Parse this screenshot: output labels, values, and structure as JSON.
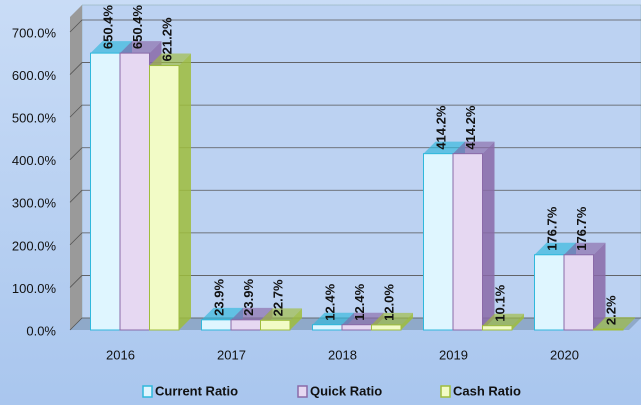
{
  "chart_data": {
    "type": "bar3d",
    "categories": [
      "2016",
      "2017",
      "2018",
      "2019",
      "2020"
    ],
    "series": [
      {
        "name": "Current Ratio",
        "color": "#dff6ff",
        "edge": "#2fb8dc",
        "values": [
          650.4,
          23.9,
          12.4,
          414.2,
          176.7
        ],
        "value_labels": [
          "650.4%",
          "23.9%",
          "12.4%",
          "414.2%",
          "176.7%"
        ]
      },
      {
        "name": "Quick Ratio",
        "color": "#e6d8f2",
        "edge": "#8a6aa8",
        "values": [
          650.4,
          23.9,
          12.4,
          414.2,
          176.7
        ],
        "value_labels": [
          "650.4%",
          "23.9%",
          "12.4%",
          "414.2%",
          "176.7%"
        ]
      },
      {
        "name": "Cash Ratio",
        "color": "#f2fbc6",
        "edge": "#9fbd3c",
        "values": [
          621.2,
          22.7,
          12.0,
          10.1,
          2.2
        ],
        "value_labels": [
          "621.2%",
          "22.7%",
          "12.0%",
          "10.1%",
          "2.2%"
        ]
      }
    ],
    "ylim": [
      0,
      700
    ],
    "yticks": [
      {
        "value": 0,
        "label": "0.0%"
      },
      {
        "value": 100,
        "label": "100.0%"
      },
      {
        "value": 200,
        "label": "200.0%"
      },
      {
        "value": 300,
        "label": "300.0%"
      },
      {
        "value": 400,
        "label": "400.0%"
      },
      {
        "value": 500,
        "label": "500.0%"
      },
      {
        "value": 600,
        "label": "600.0%"
      },
      {
        "value": 700,
        "label": "700.0%"
      }
    ],
    "grid": true
  }
}
